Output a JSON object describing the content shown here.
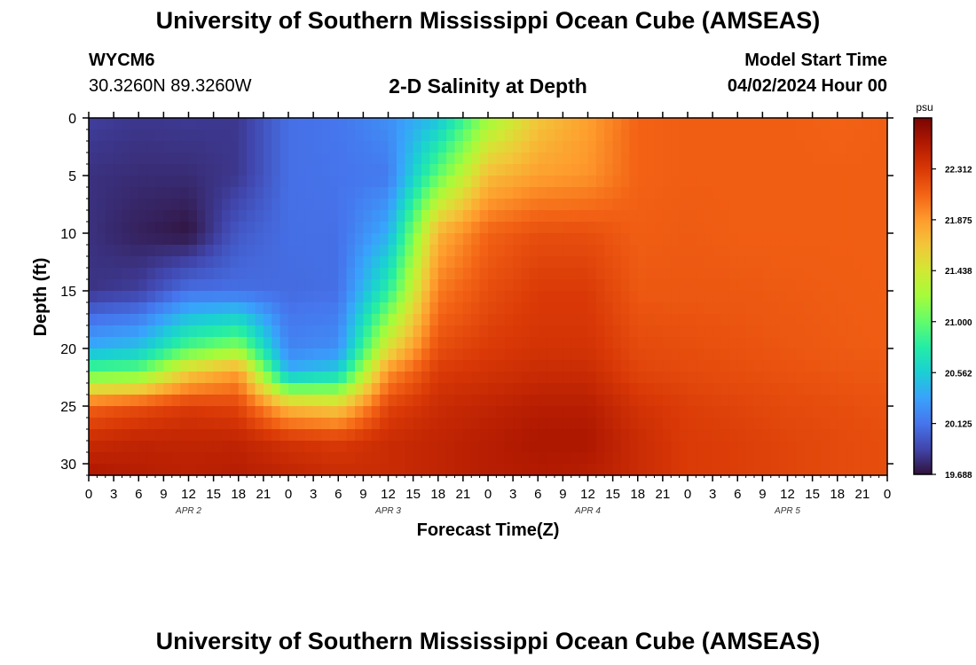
{
  "header": {
    "title": "University of Southern Mississippi Ocean Cube (AMSEAS)",
    "station": "WYCM6",
    "coordinates": "30.3260N  89.3260W",
    "subtitle": "2-D Salinity at Depth",
    "start_label": "Model Start Time",
    "start_time": "04/02/2024 Hour 00"
  },
  "footer": {
    "title": "University of Southern Mississippi Ocean Cube (AMSEAS)"
  },
  "chart_data": {
    "type": "heatmap",
    "title": "2-D Salinity at Depth",
    "xlabel": "Forecast Time(Z)",
    "ylabel": "Depth (ft)",
    "x_tick_labels": [
      "0",
      "3",
      "6",
      "9",
      "12",
      "15",
      "18",
      "21",
      "0",
      "3",
      "6",
      "9",
      "12",
      "15",
      "18",
      "21",
      "0",
      "3",
      "6",
      "9",
      "12",
      "15",
      "18",
      "21",
      "0",
      "3",
      "6",
      "9",
      "12",
      "15",
      "18",
      "21",
      "0"
    ],
    "date_labels": [
      {
        "label": "APR 2",
        "hour": 12
      },
      {
        "label": "APR 3",
        "hour": 36
      },
      {
        "label": "APR 4",
        "hour": 60
      },
      {
        "label": "APR 5",
        "hour": 84
      }
    ],
    "xlim_hours": [
      0,
      96
    ],
    "ylim": [
      0,
      31
    ],
    "y_ticks": [
      0,
      5,
      10,
      15,
      20,
      25,
      30
    ],
    "y_inverted": true,
    "colorbar": {
      "unit": "psu",
      "min": 19.688,
      "max": 22.75,
      "tick_labels": [
        "22.312",
        "21.875",
        "21.438",
        "21.000",
        "20.562",
        "20.125",
        "19.688"
      ],
      "ticks": [
        22.312,
        21.875,
        21.438,
        21.0,
        20.562,
        20.125,
        19.688
      ]
    },
    "depths_ft": [
      0,
      5,
      10,
      15,
      20,
      22,
      25,
      28,
      31
    ],
    "hours": [
      0,
      6,
      12,
      18,
      24,
      30,
      36,
      42,
      48,
      54,
      60,
      66,
      72,
      78,
      84,
      90,
      96
    ],
    "salinity_psu": [
      [
        19.88,
        19.85,
        19.86,
        19.85,
        20.1,
        20.13,
        20.25,
        20.5,
        21.2,
        21.65,
        21.85,
        22.1,
        22.12,
        22.12,
        22.12,
        22.1,
        22.12
      ],
      [
        19.82,
        19.8,
        19.8,
        19.85,
        20.1,
        20.12,
        20.15,
        21.0,
        21.7,
        21.85,
        21.9,
        22.1,
        22.12,
        22.12,
        22.12,
        22.12,
        22.12
      ],
      [
        19.82,
        19.75,
        19.7,
        20.0,
        20.1,
        20.1,
        20.4,
        21.75,
        22.1,
        22.2,
        22.2,
        22.12,
        22.14,
        22.12,
        22.12,
        22.12,
        22.12
      ],
      [
        19.83,
        19.88,
        20.1,
        20.1,
        20.08,
        20.1,
        20.8,
        22.0,
        22.2,
        22.3,
        22.3,
        22.15,
        22.15,
        22.15,
        22.14,
        22.13,
        22.12
      ],
      [
        20.4,
        20.5,
        20.95,
        21.15,
        20.2,
        20.25,
        21.5,
        22.2,
        22.3,
        22.35,
        22.35,
        22.22,
        22.2,
        22.18,
        22.16,
        22.14,
        22.13
      ],
      [
        20.95,
        21.0,
        21.6,
        21.85,
        20.4,
        20.55,
        21.9,
        22.3,
        22.35,
        22.4,
        22.4,
        22.25,
        22.22,
        22.2,
        22.18,
        22.16,
        22.15
      ],
      [
        22.1,
        22.2,
        22.3,
        22.25,
        21.7,
        21.6,
        22.25,
        22.4,
        22.45,
        22.5,
        22.5,
        22.35,
        22.28,
        22.25,
        22.22,
        22.2,
        22.18
      ],
      [
        22.4,
        22.45,
        22.45,
        22.45,
        22.35,
        22.3,
        22.4,
        22.45,
        22.5,
        22.55,
        22.55,
        22.4,
        22.3,
        22.28,
        22.25,
        22.22,
        22.2
      ],
      [
        22.55,
        22.5,
        22.48,
        22.5,
        22.45,
        22.4,
        22.4,
        22.45,
        22.5,
        22.52,
        22.5,
        22.4,
        22.3,
        22.28,
        22.25,
        22.22,
        22.2
      ]
    ]
  },
  "colors": {
    "scale": [
      "#30123b",
      "#4145ab",
      "#4675ed",
      "#39a2fc",
      "#1bcfd4",
      "#24eca6",
      "#61fc6c",
      "#a4fc3b",
      "#d1e834",
      "#f3c63a",
      "#fe9b2d",
      "#f36315",
      "#d93806",
      "#b11901",
      "#7a0402"
    ]
  }
}
